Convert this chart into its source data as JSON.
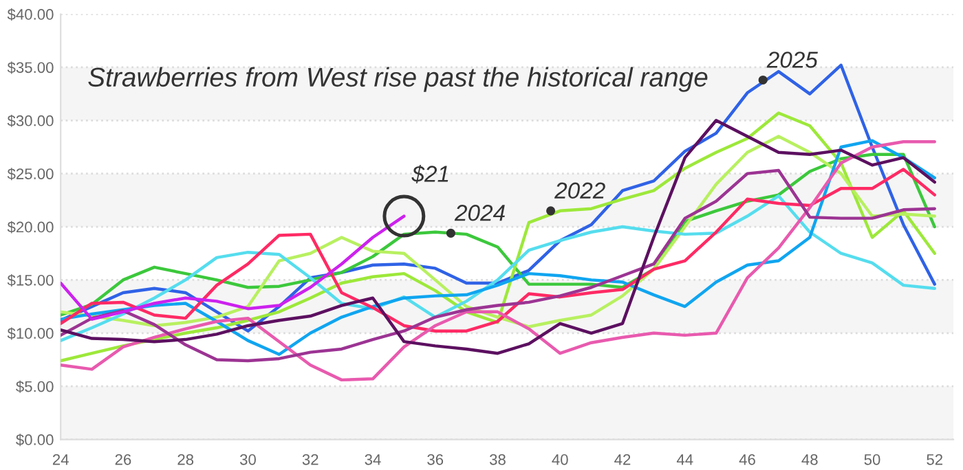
{
  "chart_data": {
    "type": "line",
    "title": "Strawberries from West rise past the historical range",
    "x": [
      24,
      25,
      26,
      27,
      28,
      29,
      30,
      31,
      32,
      33,
      34,
      35,
      36,
      37,
      38,
      39,
      40,
      41,
      42,
      43,
      44,
      45,
      46,
      47,
      48,
      49,
      50,
      51,
      52
    ],
    "series": [
      {
        "color": "#2f62e6",
        "values": [
          11.2,
          12.5,
          13.8,
          14.2,
          13.8,
          12,
          10.2,
          12.5,
          15.2,
          15.7,
          16.4,
          16.5,
          16.1,
          14.7,
          14.7,
          15.9,
          18.7,
          20.2,
          23.4,
          24.3,
          27.1,
          28.8,
          32.6,
          34.6,
          32.5,
          35.2,
          27.5,
          20.2,
          14.6
        ]
      },
      {
        "color": "#3cc83c",
        "values": [
          11.7,
          12.7,
          15,
          16.2,
          15.6,
          15,
          14.3,
          14.4,
          15,
          15.7,
          17.2,
          19.3,
          19.5,
          19.3,
          18.1,
          14.6,
          14.6,
          14.6,
          14.3,
          16,
          20.5,
          21.5,
          22.4,
          23,
          25.2,
          26.4,
          26.8,
          26.8,
          20
        ]
      },
      {
        "color": "#9de83a",
        "values": [
          7.4,
          8.1,
          8.8,
          9.4,
          10,
          10.5,
          11.2,
          12,
          13.3,
          14.7,
          15.3,
          15.6,
          14,
          12,
          11,
          20.4,
          21.5,
          21.7,
          22.6,
          23.4,
          25.5,
          27,
          28.3,
          30.7,
          29.5,
          26,
          19,
          21.5,
          17.5
        ]
      },
      {
        "color": "#b8f060",
        "values": [
          12,
          11.6,
          11.2,
          10.7,
          11,
          11.5,
          12.5,
          16.8,
          17.5,
          19,
          17.7,
          17.5,
          15,
          12.5,
          11.5,
          10.6,
          11.2,
          11.7,
          13.5,
          16,
          20,
          24,
          27,
          28.5,
          27,
          25,
          21,
          21.2,
          21
        ]
      },
      {
        "color": "#55ddee",
        "values": [
          9.3,
          10.5,
          11.8,
          13.3,
          15,
          17.1,
          17.6,
          17.4,
          15.2,
          12.8,
          12.3,
          13.4,
          11.5,
          13,
          15,
          17.8,
          18.7,
          19.5,
          20,
          19.6,
          19.3,
          19.4,
          21,
          22.9,
          19.5,
          17.5,
          16.6,
          14.5,
          14.2
        ]
      },
      {
        "color": "#10a5f0",
        "values": [
          11.3,
          11.8,
          12.2,
          12.6,
          12.8,
          11.1,
          9.3,
          8,
          10,
          11.5,
          12.5,
          13.3,
          13.5,
          13.6,
          14.5,
          15.6,
          15.4,
          15,
          14.8,
          13.6,
          12.5,
          14.8,
          16.4,
          16.8,
          19,
          27.5,
          28.1,
          26.5,
          24.6
        ]
      },
      {
        "color": "#ff2a64",
        "values": [
          10.9,
          12.8,
          12.9,
          11.7,
          11.4,
          14.5,
          16.5,
          19.2,
          19.3,
          13.8,
          12.4,
          10.7,
          10.2,
          10.2,
          11.1,
          13.7,
          13.4,
          13.8,
          14.1,
          16,
          16.8,
          19.5,
          22.6,
          22.2,
          22,
          23.6,
          23.6,
          25.4,
          23
        ]
      },
      {
        "color": "#e85aae",
        "values": [
          7,
          6.6,
          8.7,
          9.6,
          10.4,
          11.1,
          11.4,
          9.2,
          7,
          5.6,
          5.7,
          8.7,
          10.7,
          12,
          12,
          10.4,
          8.1,
          9.1,
          9.6,
          10,
          9.8,
          10,
          15.2,
          18,
          21.8,
          26,
          27.5,
          28,
          28
        ]
      },
      {
        "color": "#9c3493",
        "values": [
          9.8,
          11.4,
          12.1,
          10.8,
          8.9,
          7.5,
          7.4,
          7.6,
          8.2,
          8.5,
          9.4,
          10.2,
          11.5,
          12.2,
          12.6,
          12.9,
          13.5,
          14.3,
          15.4,
          16.5,
          20.8,
          22.4,
          25,
          25.3,
          20.9,
          20.8,
          20.8,
          21.6,
          21.7
        ]
      },
      {
        "color": "#5c1060",
        "values": [
          10.3,
          9.5,
          9.4,
          9.2,
          9.4,
          9.9,
          10.7,
          11.2,
          11.6,
          12.6,
          13.3,
          9.2,
          8.8,
          8.5,
          8.1,
          9,
          10.9,
          10,
          10.9,
          19,
          26.5,
          30,
          28.5,
          27,
          26.8,
          27.2,
          25.8,
          26.5,
          24.2
        ]
      },
      {
        "color": "#cc22ee",
        "values": [
          14.7,
          11.3,
          12,
          12.8,
          13.3,
          13,
          12.3,
          12.6,
          14.3,
          16.5,
          19,
          21,
          null,
          null,
          null,
          null,
          null,
          null,
          null,
          null,
          null,
          null,
          null,
          null,
          null,
          null,
          null,
          null,
          null
        ]
      }
    ],
    "annotations": [
      {
        "text": "$21",
        "x": 35,
        "y": 21
      },
      {
        "text": "2024",
        "x": 36.5,
        "y": 19.4
      },
      {
        "text": "2022",
        "x": 39.7,
        "y": 21.5
      },
      {
        "text": "2025",
        "x": 46.5,
        "y": 33.8
      }
    ],
    "xlim": [
      24,
      52.6
    ],
    "xticks": [
      24,
      26,
      28,
      30,
      32,
      34,
      36,
      38,
      40,
      42,
      44,
      46,
      48,
      50,
      52
    ],
    "ylim": [
      0,
      40
    ],
    "yticks": [
      {
        "value": 0,
        "label": "$0.00"
      },
      {
        "value": 5,
        "label": "$5.00"
      },
      {
        "value": 10,
        "label": "$10.00"
      },
      {
        "value": 15,
        "label": "$15.00"
      },
      {
        "value": 20,
        "label": "$20.00"
      },
      {
        "value": 25,
        "label": "$25.00"
      },
      {
        "value": 30,
        "label": "$30.00"
      },
      {
        "value": 35,
        "label": "$35.00"
      },
      {
        "value": 40,
        "label": "$40.00"
      }
    ],
    "bands": [
      {
        "axis": "y",
        "from": 0,
        "to": 5,
        "color": "#f5f5f5"
      },
      {
        "axis": "y",
        "from": 10,
        "to": 15,
        "color": "#f5f5f5"
      },
      {
        "axis": "y",
        "from": 20,
        "to": 25,
        "color": "#f5f5f5"
      },
      {
        "axis": "y",
        "from": 30,
        "to": 35,
        "color": "#f5f5f5"
      }
    ],
    "grid": "y",
    "legend": false,
    "marker": "none",
    "line_style": "solid"
  }
}
